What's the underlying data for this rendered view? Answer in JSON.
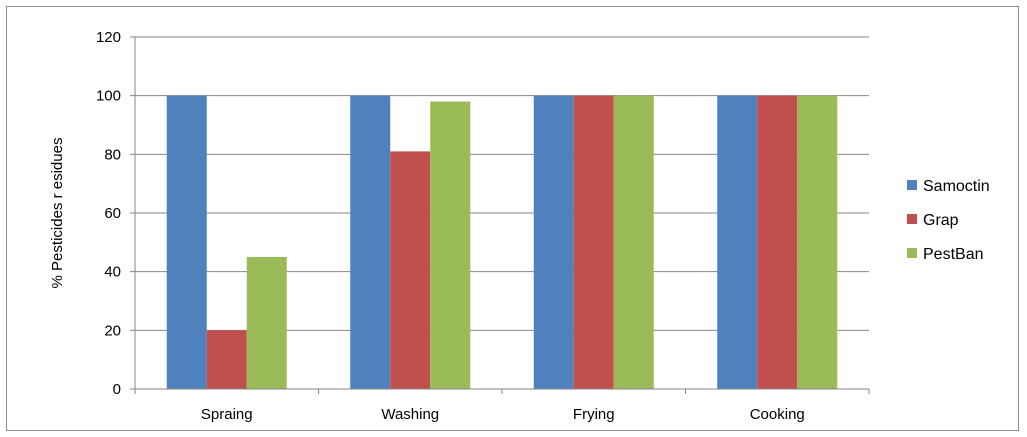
{
  "chart_data": {
    "type": "bar",
    "title": "",
    "xlabel": "",
    "ylabel": "% Pesticides r esidues",
    "ylim": [
      0,
      120
    ],
    "yticks": [
      0,
      20,
      40,
      60,
      80,
      100,
      120
    ],
    "grid": true,
    "legend_position": "right",
    "categories": [
      "Spraing",
      "Washing",
      "Frying",
      "Cooking"
    ],
    "series": [
      {
        "name": "Samoctin",
        "color": "#4f81bd",
        "values": [
          100,
          100,
          100,
          100
        ]
      },
      {
        "name": "Grap",
        "color": "#c0504d",
        "values": [
          20,
          81,
          100,
          100
        ]
      },
      {
        "name": "PestBan",
        "color": "#9bbb59",
        "values": [
          45,
          98,
          100,
          100
        ]
      }
    ]
  }
}
